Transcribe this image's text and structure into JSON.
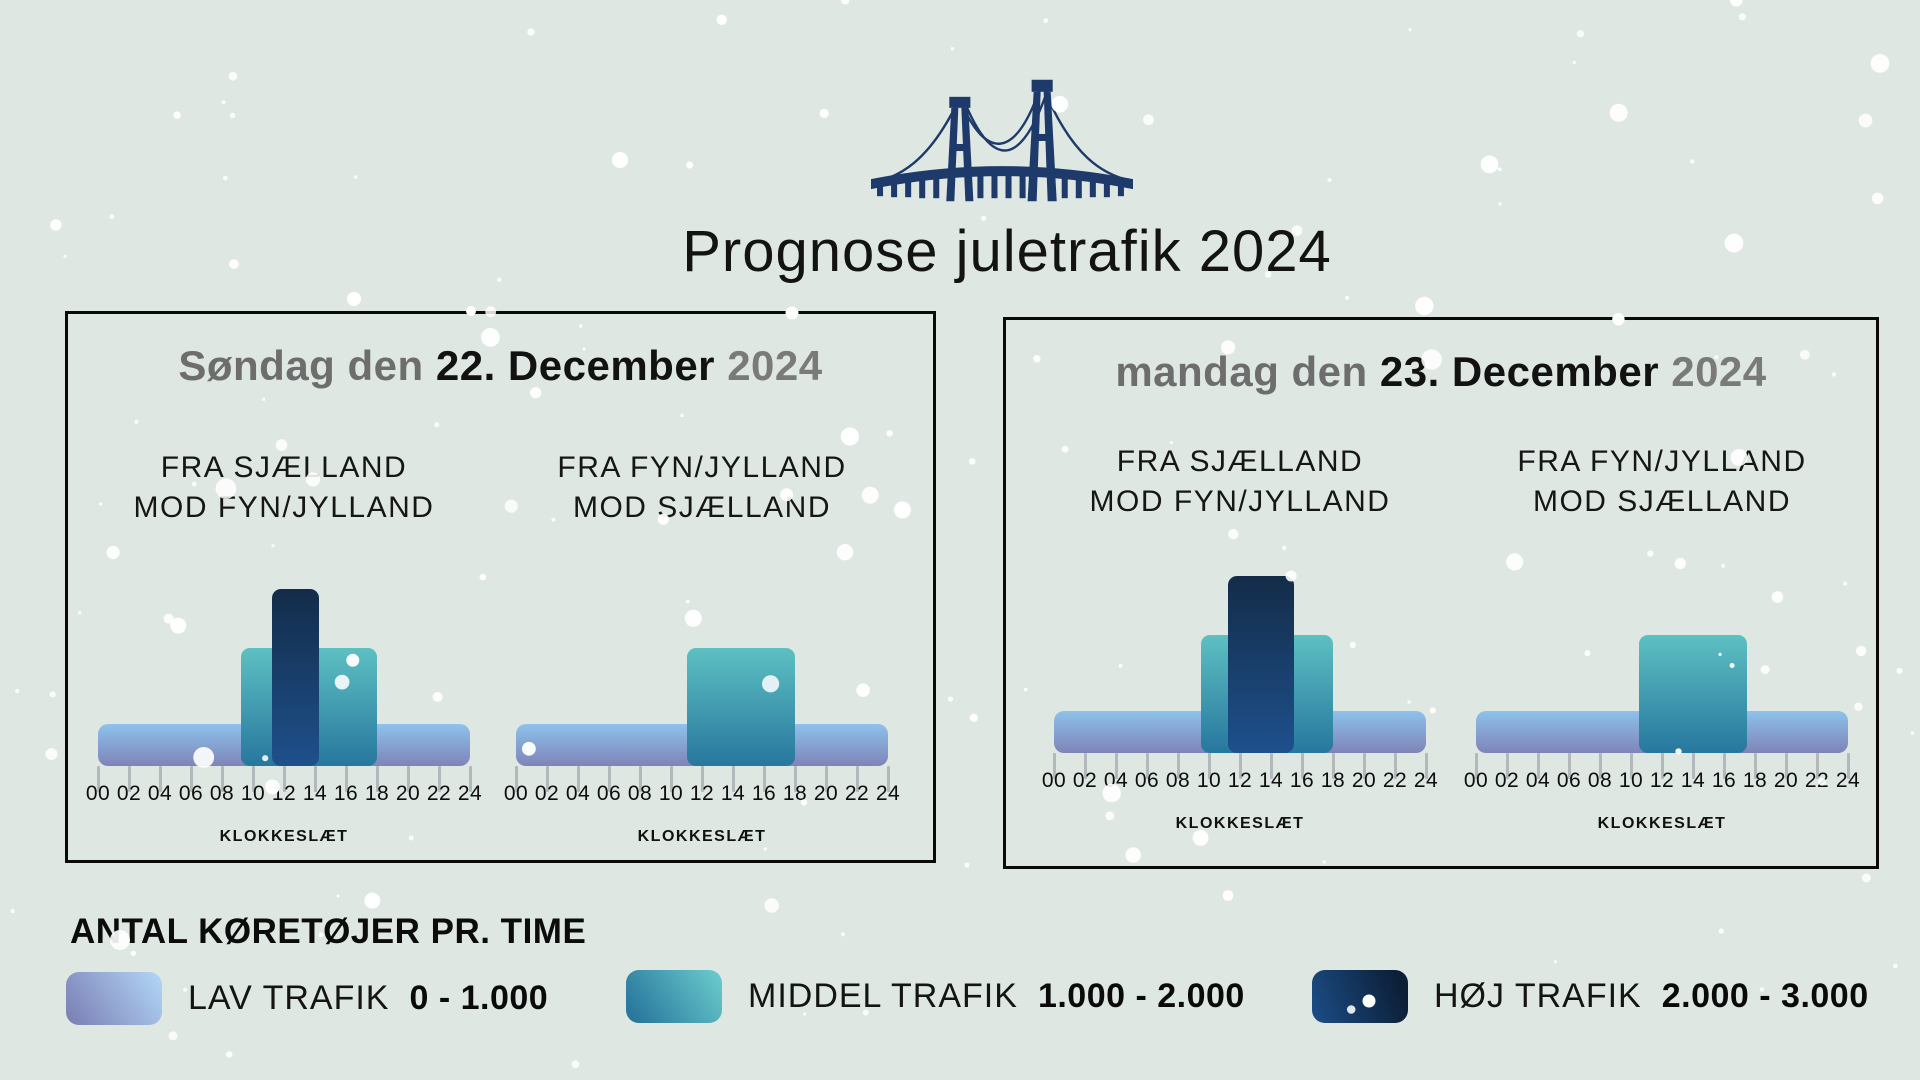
{
  "page": {
    "title": "Prognose juletrafik 2024"
  },
  "colors": {
    "background": "#dee7e1",
    "bridge_navy": "#1d3a6b",
    "low_top": "#8ec2ec",
    "low_bottom": "#7e84b8",
    "mid_top": "#5dc0c2",
    "mid_bottom": "#27779e",
    "high_top": "#132c49",
    "high_bottom": "#1e508c",
    "date_gray": "#6d6d6d",
    "text_black": "#121212"
  },
  "axis": {
    "ticks": [
      "00",
      "02",
      "04",
      "06",
      "08",
      "10",
      "12",
      "14",
      "16",
      "18",
      "20",
      "22",
      "24"
    ],
    "xlabel": "KLOKKESLÆT"
  },
  "panels": [
    {
      "date_prefix": "Søndag den",
      "date_main": "22. December",
      "date_year": "2024",
      "charts": [
        {
          "line1": "FRA SJÆLLAND",
          "line2": "MOD FYN/JYLLAND"
        },
        {
          "line1": "FRA FYN/JYLLAND",
          "line2": "MOD SJÆLLAND"
        }
      ]
    },
    {
      "date_prefix": "mandag den",
      "date_main": "23. December",
      "date_year": "2024",
      "charts": [
        {
          "line1": "FRA SJÆLLAND",
          "line2": "MOD FYN/JYLLAND"
        },
        {
          "line1": "FRA FYN/JYLLAND",
          "line2": "MOD SJÆLLAND"
        }
      ]
    }
  ],
  "legend": {
    "heading": "ANTAL KØRETØJER PR. TIME",
    "items": [
      {
        "label": "LAV TRAFIK",
        "range": "0 - 1.000"
      },
      {
        "label": "MIDDEL TRAFIK",
        "range": "1.000 - 2.000"
      },
      {
        "label": "HØJ TRAFIK",
        "range": "2.000 - 3.000"
      }
    ]
  },
  "chart_data": [
    {
      "type": "bar",
      "title": "Søndag den 22. December 2024 — FRA SJÆLLAND MOD FYN/JYLLAND",
      "xlabel": "KLOKKESLÆT",
      "x_ticks": [
        "00",
        "02",
        "04",
        "06",
        "08",
        "10",
        "12",
        "14",
        "16",
        "18",
        "20",
        "22",
        "24"
      ],
      "x_range": [
        0,
        24
      ],
      "series": [
        {
          "name": "LAV TRAFIK",
          "vehicles_per_hour": "0 - 1.000",
          "from_hour": 0,
          "to_hour": 24,
          "level": 1
        },
        {
          "name": "MIDDEL TRAFIK",
          "vehicles_per_hour": "1.000 - 2.000",
          "from_hour": 9.25,
          "to_hour": 18,
          "level": 2
        },
        {
          "name": "HØJ TRAFIK",
          "vehicles_per_hour": "2.000 - 3.000",
          "from_hour": 11.25,
          "to_hour": 14.25,
          "level": 3
        }
      ]
    },
    {
      "type": "bar",
      "title": "Søndag den 22. December 2024 — FRA FYN/JYLLAND MOD SJÆLLAND",
      "xlabel": "KLOKKESLÆT",
      "x_ticks": [
        "00",
        "02",
        "04",
        "06",
        "08",
        "10",
        "12",
        "14",
        "16",
        "18",
        "20",
        "22",
        "24"
      ],
      "x_range": [
        0,
        24
      ],
      "series": [
        {
          "name": "LAV TRAFIK",
          "vehicles_per_hour": "0 - 1.000",
          "from_hour": 0,
          "to_hour": 24,
          "level": 1
        },
        {
          "name": "MIDDEL TRAFIK",
          "vehicles_per_hour": "1.000 - 2.000",
          "from_hour": 11,
          "to_hour": 18,
          "level": 2
        }
      ]
    },
    {
      "type": "bar",
      "title": "mandag den 23. December 2024 — FRA SJÆLLAND MOD FYN/JYLLAND",
      "xlabel": "KLOKKESLÆT",
      "x_ticks": [
        "00",
        "02",
        "04",
        "06",
        "08",
        "10",
        "12",
        "14",
        "16",
        "18",
        "20",
        "22",
        "24"
      ],
      "x_range": [
        0,
        24
      ],
      "series": [
        {
          "name": "LAV TRAFIK",
          "vehicles_per_hour": "0 - 1.000",
          "from_hour": 0,
          "to_hour": 24,
          "level": 1
        },
        {
          "name": "MIDDEL TRAFIK",
          "vehicles_per_hour": "1.000 - 2.000",
          "from_hour": 9.5,
          "to_hour": 18,
          "level": 2
        },
        {
          "name": "HØJ TRAFIK",
          "vehicles_per_hour": "2.000 - 3.000",
          "from_hour": 11.25,
          "to_hour": 15.5,
          "level": 3
        }
      ]
    },
    {
      "type": "bar",
      "title": "mandag den 23. December 2024 — FRA FYN/JYLLAND MOD SJÆLLAND",
      "xlabel": "KLOKKESLÆT",
      "x_ticks": [
        "00",
        "02",
        "04",
        "06",
        "08",
        "10",
        "12",
        "14",
        "16",
        "18",
        "20",
        "22",
        "24"
      ],
      "x_range": [
        0,
        24
      ],
      "series": [
        {
          "name": "LAV TRAFIK",
          "vehicles_per_hour": "0 - 1.000",
          "from_hour": 0,
          "to_hour": 24,
          "level": 1
        },
        {
          "name": "MIDDEL TRAFIK",
          "vehicles_per_hour": "1.000 - 2.000",
          "from_hour": 10.5,
          "to_hour": 17.5,
          "level": 2
        }
      ]
    }
  ]
}
